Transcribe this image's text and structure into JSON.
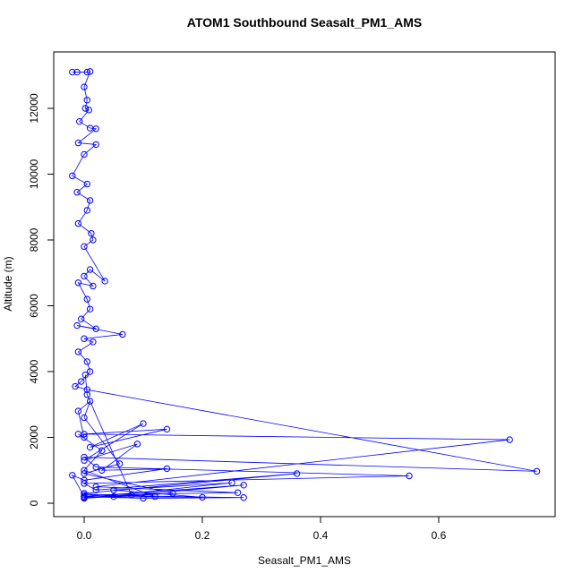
{
  "chart_data": {
    "type": "scatter-line",
    "title": "ATOM1 Southbound Seasalt_PM1_AMS",
    "x_label": "Seasalt_PM1_AMS",
    "y_label": "Altitude (m)",
    "color": "#0000ff",
    "xlim": [
      -0.0515,
      0.797
    ],
    "ylim": [
      -408,
      13714
    ],
    "xticks": [
      {
        "value": 0,
        "label": "0.0"
      },
      {
        "value": 0.2,
        "label": "0.2"
      },
      {
        "value": 0.4,
        "label": "0.4"
      },
      {
        "value": 0.6,
        "label": "0.6"
      }
    ],
    "yticks": [
      0,
      2000,
      4000,
      6000,
      8000,
      10000,
      12000
    ],
    "x": [
      -0.02,
      -0.012,
      0.005,
      0.01,
      0.0,
      0.005,
      0.002,
      0.008,
      -0.008,
      0.01,
      0.02,
      -0.01,
      0.02,
      0.0,
      -0.02,
      0.005,
      -0.012,
      0.01,
      0.005,
      -0.01,
      0.012,
      0.015,
      0.0,
      0.035,
      0.01,
      0.0,
      0.015,
      -0.01,
      0.005,
      0.01,
      -0.005,
      0.02,
      -0.012,
      0.065,
      0.0,
      0.015,
      -0.01,
      0.005,
      0.01,
      -0.005,
      -0.015,
      0.005,
      0.766,
      0.0,
      0.02,
      0.55,
      0.0,
      0.02,
      0.36,
      0.0,
      0.05,
      0.27,
      0.0,
      0.1,
      0.27,
      0.0,
      0.26,
      0.02,
      0.72,
      0.0,
      0.14,
      0.01,
      0.1,
      0.0,
      0.09,
      0.03,
      0.14,
      0.0,
      -0.02,
      0.0,
      0.2,
      0.05,
      0.25,
      0.0,
      0.15,
      0.0,
      0.06,
      0.0,
      0.01,
      -0.01,
      0.0,
      -0.01,
      0.03,
      0.0,
      0.12,
      0.0,
      0.08,
      0.005,
      0.002
    ],
    "values": [
      13100,
      13100,
      13100,
      13120,
      12650,
      12250,
      12000,
      11950,
      11600,
      11400,
      11380,
      10950,
      10900,
      10600,
      9950,
      9700,
      9450,
      9200,
      8900,
      8500,
      8200,
      8000,
      7800,
      6750,
      7100,
      6900,
      6600,
      6700,
      6200,
      5900,
      5600,
      5300,
      5400,
      5130,
      5000,
      4900,
      4600,
      4300,
      4000,
      3700,
      3550,
      3450,
      970,
      1400,
      1100,
      830,
      600,
      400,
      900,
      300,
      200,
      550,
      200,
      150,
      170,
      250,
      320,
      500,
      1930,
      2100,
      2250,
      1700,
      2420,
      1300,
      1800,
      1000,
      1050,
      700,
      850,
      200,
      180,
      400,
      620,
      150,
      300,
      900,
      1200,
      2600,
      3100,
      2800,
      2000,
      2100,
      1600,
      1000,
      200,
      180,
      250,
      3300,
      3900
    ]
  }
}
